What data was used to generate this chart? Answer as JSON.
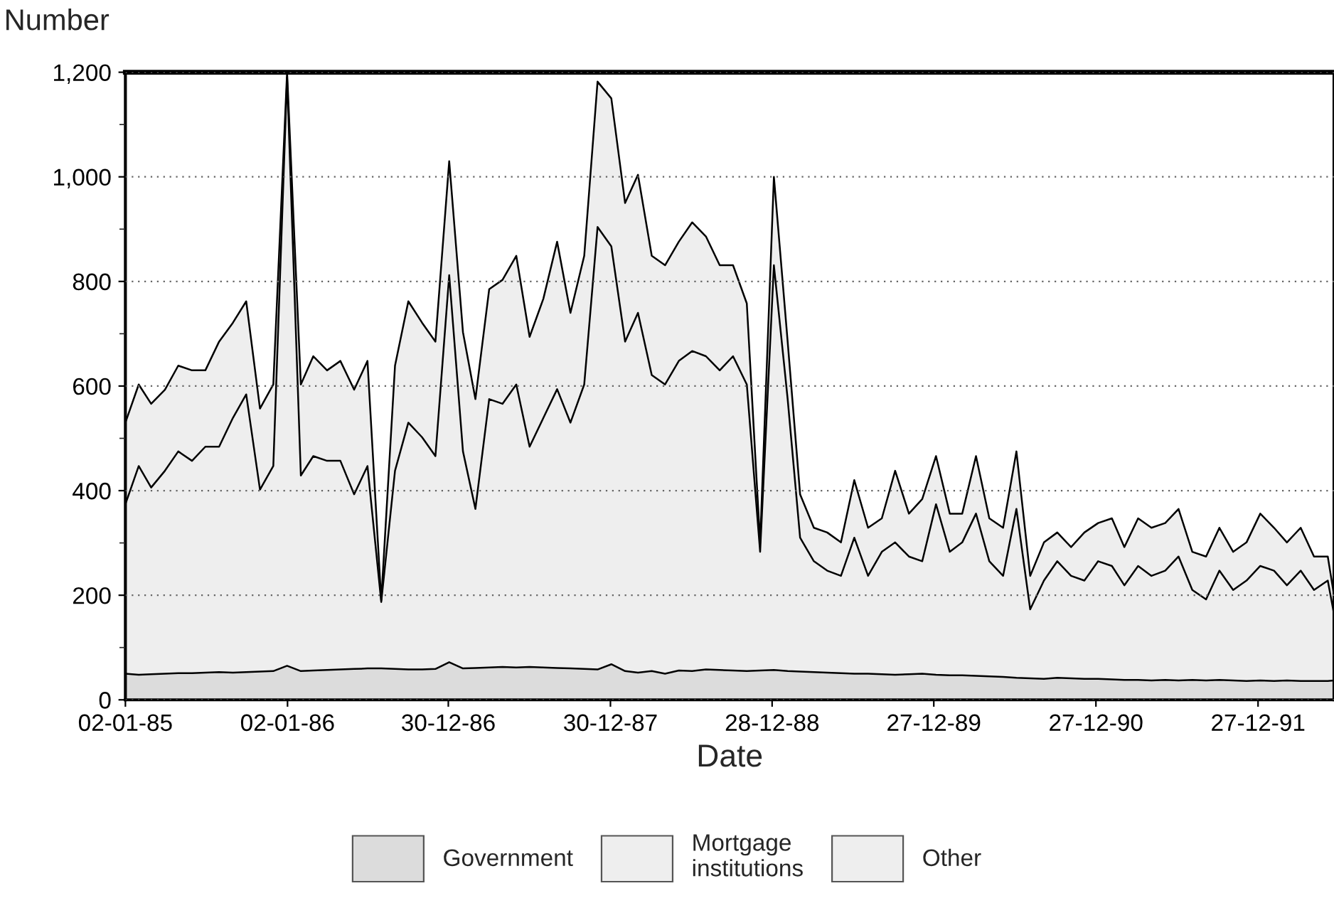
{
  "chart_data": {
    "type": "area",
    "stacked": true,
    "xlabel": "Date",
    "ylabel": "Number",
    "x": [
      "1985-01-02",
      "1985-02",
      "1985-03",
      "1985-04",
      "1985-05",
      "1985-06",
      "1985-07",
      "1985-08",
      "1985-09",
      "1985-10",
      "1985-11",
      "1985-12",
      "1986-01",
      "1986-02",
      "1986-03",
      "1986-04",
      "1986-05",
      "1986-06",
      "1986-07",
      "1986-08",
      "1986-09",
      "1986-10",
      "1986-11",
      "1986-12",
      "1987-01",
      "1987-02",
      "1987-03",
      "1987-04",
      "1987-05",
      "1987-06",
      "1987-07",
      "1987-08",
      "1987-09",
      "1987-10",
      "1987-11",
      "1987-12",
      "1988-01",
      "1988-02",
      "1988-03",
      "1988-04",
      "1988-05",
      "1988-06",
      "1988-07",
      "1988-08",
      "1988-09",
      "1988-10",
      "1988-11",
      "1988-12",
      "1989-01",
      "1989-02",
      "1989-03",
      "1989-04",
      "1989-05",
      "1989-06",
      "1989-07",
      "1989-08",
      "1989-09",
      "1989-10",
      "1989-11",
      "1989-12",
      "1990-01",
      "1990-02",
      "1990-03",
      "1990-04",
      "1990-05",
      "1990-06",
      "1990-07",
      "1990-08",
      "1990-09",
      "1990-10",
      "1990-11",
      "1990-12",
      "1991-01",
      "1991-02",
      "1991-03",
      "1991-04",
      "1991-05",
      "1991-06",
      "1991-07",
      "1991-08",
      "1991-09",
      "1991-10",
      "1991-11",
      "1991-12",
      "1992-01",
      "1992-02",
      "1992-03",
      "1992-04",
      "1992-05",
      "1992-06",
      "1992-06-15"
    ],
    "series": [
      {
        "name": "Government",
        "color": "#dcdcdc",
        "values": [
          50,
          48,
          49,
          50,
          51,
          51,
          52,
          53,
          52,
          53,
          54,
          55,
          65,
          55,
          56,
          57,
          58,
          59,
          60,
          60,
          59,
          58,
          58,
          59,
          72,
          60,
          61,
          62,
          63,
          62,
          63,
          62,
          61,
          60,
          59,
          58,
          68,
          55,
          52,
          55,
          50,
          56,
          55,
          58,
          57,
          56,
          55,
          56,
          57,
          55,
          54,
          53,
          52,
          51,
          50,
          50,
          49,
          48,
          49,
          50,
          48,
          47,
          47,
          46,
          45,
          44,
          42,
          41,
          40,
          42,
          41,
          40,
          40,
          39,
          38,
          38,
          37,
          38,
          37,
          38,
          37,
          38,
          37,
          36,
          37,
          36,
          37,
          36,
          36,
          36,
          37
        ]
      },
      {
        "name": "Mortgage\ninstitutions",
        "color": "#eeeeee",
        "values": [
          324,
          399,
          357,
          388,
          424,
          406,
          432,
          431,
          487,
          531,
          348,
          392,
          1125,
          374,
          410,
          400,
          399,
          334,
          387,
          127,
          379,
          472,
          444,
          407,
          740,
          415,
          304,
          513,
          503,
          541,
          421,
          477,
          533,
          470,
          544,
          846,
          799,
          630,
          688,
          566,
          553,
          592,
          612,
          599,
          573,
          601,
          548,
          227,
          774,
          520,
          256,
          212,
          195,
          186,
          260,
          187,
          234,
          253,
          225,
          215,
          326,
          236,
          254,
          310,
          220,
          193,
          323,
          132,
          188,
          223,
          196,
          188,
          225,
          217,
          181,
          218,
          200,
          209,
          237,
          172,
          155,
          209,
          173,
          192,
          219,
          211,
          182,
          211,
          174,
          192,
          127
        ]
      },
      {
        "name": "Other",
        "color": "#eeeeee",
        "values": [
          156,
          156,
          160,
          155,
          164,
          173,
          146,
          201,
          182,
          178,
          155,
          156,
          10,
          174,
          191,
          173,
          191,
          200,
          201,
          3,
          201,
          232,
          219,
          219,
          218,
          228,
          210,
          210,
          237,
          246,
          210,
          228,
          282,
          210,
          246,
          278,
          283,
          265,
          264,
          228,
          228,
          228,
          246,
          229,
          201,
          174,
          155,
          17,
          169,
          110,
          83,
          64,
          73,
          64,
          110,
          92,
          64,
          137,
          82,
          119,
          92,
          73,
          55,
          110,
          82,
          92,
          110,
          64,
          73,
          55,
          55,
          92,
          73,
          91,
          73,
          91,
          92,
          91,
          91,
          73,
          82,
          82,
          73,
          73,
          100,
          82,
          82,
          82,
          64,
          46,
          36
        ]
      }
    ],
    "xlim": [
      "1985-01-02",
      "1992-06-15"
    ],
    "xticks": [
      {
        "value": "1985-01-02",
        "label": "02-01-85"
      },
      {
        "value": "1986-01-02",
        "label": "02-01-86"
      },
      {
        "value": "1986-12-30",
        "label": "30-12-86"
      },
      {
        "value": "1987-12-30",
        "label": "30-12-87"
      },
      {
        "value": "1988-12-28",
        "label": "28-12-88"
      },
      {
        "value": "1989-12-27",
        "label": "27-12-89"
      },
      {
        "value": "1990-12-27",
        "label": "27-12-90"
      },
      {
        "value": "1991-12-27",
        "label": "27-12-91"
      }
    ],
    "ylim": [
      0,
      1200
    ],
    "yticks": [
      0,
      200,
      400,
      600,
      800,
      {
        "value": 1000,
        "label": "1,000"
      },
      {
        "value": 1200,
        "label": "1,200"
      }
    ],
    "grid": "y",
    "legend": "bottom"
  }
}
